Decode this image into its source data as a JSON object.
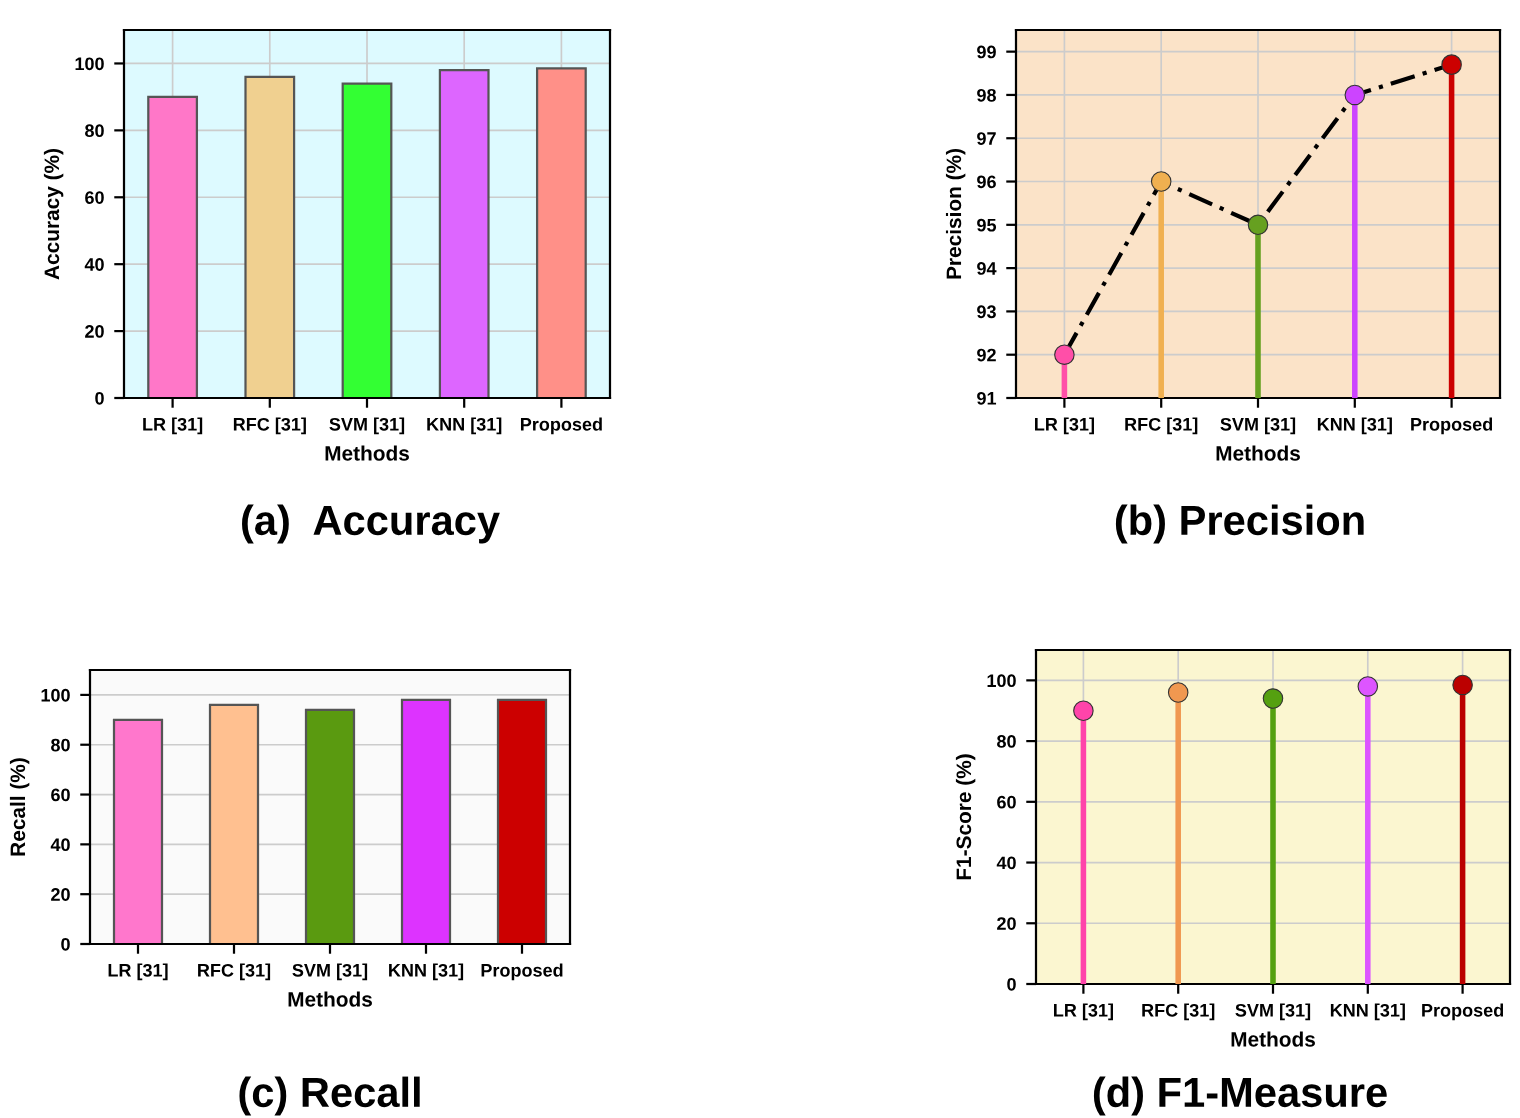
{
  "chart_data": [
    {
      "type": "bar",
      "title": "(a)  Accuracy",
      "xlabel": "Methods",
      "ylabel": "Accuracy (%)",
      "categories": [
        "LR [31]",
        "RFC [31]",
        "SVM [31]",
        "KNN [31]",
        "Proposed"
      ],
      "values": [
        90,
        96,
        94,
        98,
        98.5
      ],
      "colors": [
        "#ff77c8",
        "#f0d090",
        "#33ff33",
        "#dd66ff",
        "#ff9088"
      ],
      "ylim": [
        0,
        110
      ],
      "yticks": [
        0,
        20,
        40,
        60,
        80,
        100
      ],
      "grid": true
    },
    {
      "type": "lollipop",
      "title": "(b) Precision",
      "xlabel": "Methods",
      "ylabel": "Precision (%)",
      "categories": [
        "LR [31]",
        "RFC [31]",
        "SVM [31]",
        "KNN [31]",
        "Proposed"
      ],
      "series": [
        {
          "type": "lollipop",
          "values": [
            92,
            96,
            95,
            98,
            98.7
          ],
          "colors": [
            "#ff4fa8",
            "#f0b050",
            "#66a020",
            "#cc44ff",
            "#cc0000"
          ]
        },
        {
          "type": "line",
          "values": [
            92,
            96,
            95,
            98,
            98.7
          ],
          "color": "#000000",
          "line_style": "dashed",
          "marker": "none"
        }
      ],
      "marker": "circle",
      "ylim": [
        91,
        99.5
      ],
      "yticks": [
        91,
        92,
        93,
        94,
        95,
        96,
        97,
        98,
        99
      ],
      "grid": true
    },
    {
      "type": "bar",
      "title": "(c) Recall",
      "xlabel": "Methods",
      "ylabel": "Recall (%)",
      "categories": [
        "LR [31]",
        "RFC [31]",
        "SVM [31]",
        "KNN [31]",
        "Proposed"
      ],
      "values": [
        90,
        96,
        94,
        98,
        98
      ],
      "colors": [
        "#ff77cc",
        "#ffc090",
        "#5a9a10",
        "#dd33ff",
        "#cc0000"
      ],
      "ylim": [
        0,
        110
      ],
      "yticks": [
        0,
        20,
        40,
        60,
        80,
        100
      ],
      "grid": "y"
    },
    {
      "type": "lollipop",
      "title": "(d) F1-Measure",
      "xlabel": "Methods",
      "ylabel": "F1-Score (%)",
      "categories": [
        "LR [31]",
        "RFC [31]",
        "SVM [31]",
        "KNN [31]",
        "Proposed"
      ],
      "values": [
        90,
        96,
        94,
        98,
        98.5
      ],
      "colors": [
        "#ff44aa",
        "#f09850",
        "#55a010",
        "#dd55ff",
        "#bb0000"
      ],
      "marker": "circle",
      "ylim": [
        0,
        110
      ],
      "yticks": [
        0,
        20,
        40,
        60,
        80,
        100
      ],
      "grid": true
    }
  ]
}
